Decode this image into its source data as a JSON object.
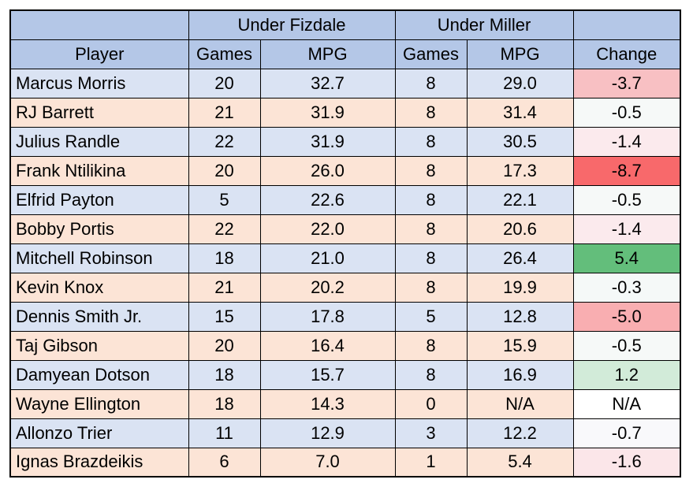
{
  "chart_data": {
    "type": "table",
    "group_headers": [
      "",
      "Under Fizdale",
      "Under Miller",
      ""
    ],
    "columns": [
      "Player",
      "Games",
      "MPG",
      "Games",
      "MPG",
      "Change"
    ],
    "rows": [
      {
        "player": "Marcus Morris",
        "fizdale_games": "20",
        "fizdale_mpg": "32.7",
        "miller_games": "8",
        "miller_mpg": "29.0",
        "change": "-3.7",
        "change_color": "#f8c0c3"
      },
      {
        "player": "RJ Barrett",
        "fizdale_games": "21",
        "fizdale_mpg": "31.9",
        "miller_games": "8",
        "miller_mpg": "31.4",
        "change": "-0.5",
        "change_color": "#f6f9f8"
      },
      {
        "player": "Julius Randle",
        "fizdale_games": "22",
        "fizdale_mpg": "31.9",
        "miller_games": "8",
        "miller_mpg": "30.5",
        "change": "-1.4",
        "change_color": "#fbeaed"
      },
      {
        "player": "Frank Ntilikina",
        "fizdale_games": "20",
        "fizdale_mpg": "26.0",
        "miller_games": "8",
        "miller_mpg": "17.3",
        "change": "-8.7",
        "change_color": "#f8696b"
      },
      {
        "player": "Elfrid Payton",
        "fizdale_games": "5",
        "fizdale_mpg": "22.6",
        "miller_games": "8",
        "miller_mpg": "22.1",
        "change": "-0.5",
        "change_color": "#f6f9f8"
      },
      {
        "player": "Bobby Portis",
        "fizdale_games": "22",
        "fizdale_mpg": "22.0",
        "miller_games": "8",
        "miller_mpg": "20.6",
        "change": "-1.4",
        "change_color": "#fbeaed"
      },
      {
        "player": "Mitchell Robinson",
        "fizdale_games": "18",
        "fizdale_mpg": "21.0",
        "miller_games": "8",
        "miller_mpg": "26.4",
        "change": "5.4",
        "change_color": "#63be7b"
      },
      {
        "player": "Kevin Knox",
        "fizdale_games": "21",
        "fizdale_mpg": "20.2",
        "miller_games": "8",
        "miller_mpg": "19.9",
        "change": "-0.3",
        "change_color": "#f5f9f8"
      },
      {
        "player": "Dennis Smith Jr.",
        "fizdale_games": "15",
        "fizdale_mpg": "17.8",
        "miller_games": "5",
        "miller_mpg": "12.8",
        "change": "-5.0",
        "change_color": "#f9aeb1"
      },
      {
        "player": "Taj Gibson",
        "fizdale_games": "20",
        "fizdale_mpg": "16.4",
        "miller_games": "8",
        "miller_mpg": "15.9",
        "change": "-0.5",
        "change_color": "#f6f9f8"
      },
      {
        "player": "Damyean Dotson",
        "fizdale_games": "18",
        "fizdale_mpg": "15.7",
        "miller_games": "8",
        "miller_mpg": "16.9",
        "change": "1.2",
        "change_color": "#d2ebd9"
      },
      {
        "player": "Wayne Ellington",
        "fizdale_games": "18",
        "fizdale_mpg": "14.3",
        "miller_games": "0",
        "miller_mpg": "N/A",
        "change": "N/A",
        "change_color": "#ffffff"
      },
      {
        "player": "Allonzo Trier",
        "fizdale_games": "11",
        "fizdale_mpg": "12.9",
        "miller_games": "3",
        "miller_mpg": "12.2",
        "change": "-0.7",
        "change_color": "#f9f9fb"
      },
      {
        "player": "Ignas Brazdeikis",
        "fizdale_games": "6",
        "fizdale_mpg": "7.0",
        "miller_games": "1",
        "miller_mpg": "5.4",
        "change": "-1.6",
        "change_color": "#fbe6e9"
      }
    ]
  }
}
